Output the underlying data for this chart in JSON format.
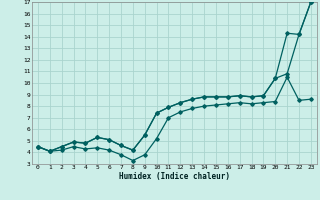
{
  "xlabel": "Humidex (Indice chaleur)",
  "bg_color": "#cceee8",
  "grid_color": "#aad4ce",
  "line_color": "#006060",
  "xlim": [
    -0.5,
    23.5
  ],
  "ylim": [
    3,
    17
  ],
  "xticks": [
    0,
    1,
    2,
    3,
    4,
    5,
    6,
    7,
    8,
    9,
    10,
    11,
    12,
    13,
    14,
    15,
    16,
    17,
    18,
    19,
    20,
    21,
    22,
    23
  ],
  "yticks": [
    3,
    4,
    5,
    6,
    7,
    8,
    9,
    10,
    11,
    12,
    13,
    14,
    15,
    16,
    17
  ],
  "line1_x": [
    0,
    1,
    2,
    3,
    4,
    5,
    6,
    7,
    8,
    9,
    10,
    11,
    12,
    13,
    14,
    15,
    16,
    17,
    18,
    19,
    20,
    21,
    22,
    23
  ],
  "line1_y": [
    4.5,
    4.1,
    4.2,
    4.5,
    4.3,
    4.4,
    4.2,
    3.8,
    3.3,
    3.8,
    5.2,
    7.0,
    7.5,
    7.8,
    8.0,
    8.1,
    8.2,
    8.3,
    8.2,
    8.3,
    8.4,
    10.5,
    8.5,
    8.6
  ],
  "line2_x": [
    0,
    1,
    2,
    3,
    4,
    5,
    6,
    7,
    8,
    9,
    10,
    11,
    12,
    13,
    14,
    15,
    16,
    17,
    18,
    19,
    20,
    21,
    22,
    23
  ],
  "line2_y": [
    4.5,
    4.1,
    4.5,
    4.9,
    4.8,
    5.3,
    5.1,
    4.6,
    4.2,
    5.5,
    7.4,
    7.9,
    8.3,
    8.6,
    8.8,
    8.8,
    8.8,
    8.9,
    8.8,
    8.9,
    10.4,
    14.3,
    14.2,
    17.0
  ],
  "line3_x": [
    0,
    1,
    2,
    3,
    4,
    5,
    6,
    7,
    8,
    9,
    10,
    11,
    12,
    13,
    14,
    15,
    16,
    17,
    18,
    19,
    20,
    21,
    22,
    23
  ],
  "line3_y": [
    4.5,
    4.1,
    4.5,
    4.9,
    4.8,
    5.3,
    5.1,
    4.6,
    4.2,
    5.5,
    7.4,
    7.9,
    8.3,
    8.6,
    8.8,
    8.8,
    8.8,
    8.9,
    8.8,
    8.9,
    10.4,
    10.8,
    14.2,
    17.0
  ]
}
